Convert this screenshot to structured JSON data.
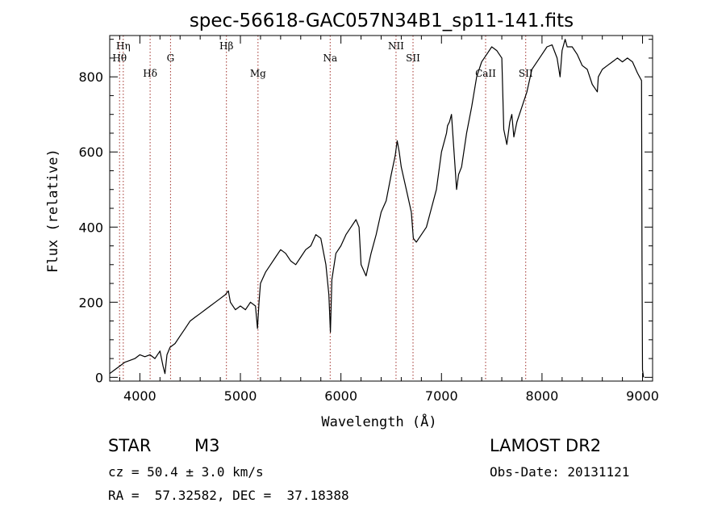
{
  "chart_data": {
    "type": "line",
    "title": "spec-56618-GAC057N34B1_sp11-141.fits",
    "xlabel": "Wavelength (Å)",
    "ylabel": "Flux (relative)",
    "xlim": [
      3700,
      9100
    ],
    "ylim": [
      -10,
      910
    ],
    "xticks": [
      4000,
      5000,
      6000,
      7000,
      8000,
      9000
    ],
    "yticks": [
      0,
      200,
      400,
      600,
      800
    ],
    "xtick_labels": [
      "4000",
      "5000",
      "6000",
      "7000",
      "8000",
      "9000"
    ],
    "ytick_labels": [
      "0",
      "200",
      "400",
      "600",
      "800"
    ],
    "grid": false,
    "spectral_lines": [
      {
        "label": "Hη",
        "wavelength": 3835,
        "row": 0
      },
      {
        "label": "Hθ",
        "wavelength": 3798,
        "row": 1
      },
      {
        "label": "Hδ",
        "wavelength": 4102,
        "row": 2
      },
      {
        "label": "G",
        "wavelength": 4305,
        "row": 1
      },
      {
        "label": "Hβ",
        "wavelength": 4861,
        "row": 0
      },
      {
        "label": "Mg",
        "wavelength": 5175,
        "row": 2
      },
      {
        "label": "Na",
        "wavelength": 5893,
        "row": 1
      },
      {
        "label": "NII",
        "wavelength": 6548,
        "row": 0
      },
      {
        "label": "SII",
        "wavelength": 6717,
        "row": 1
      },
      {
        "label": "CaII",
        "wavelength": 7439,
        "row": 2
      },
      {
        "label": "SII",
        "wavelength": 7838,
        "row": 2
      }
    ],
    "series": [
      {
        "x": [
          3700,
          3750,
          3800,
          3850,
          3900,
          3950,
          4000,
          4050,
          4100,
          4150,
          4200,
          4230,
          4250,
          4270,
          4300,
          4350,
          4400,
          4450,
          4500,
          4550,
          4600,
          4650,
          4700,
          4750,
          4800,
          4850,
          4880,
          4900,
          4950,
          5000,
          5050,
          5100,
          5150,
          5170,
          5185,
          5200,
          5250,
          5300,
          5350,
          5400,
          5450,
          5500,
          5550,
          5600,
          5650,
          5700,
          5750,
          5800,
          5850,
          5880,
          5895,
          5910,
          5950,
          6000,
          6050,
          6100,
          6150,
          6180,
          6200,
          6250,
          6300,
          6350,
          6400,
          6450,
          6500,
          6540,
          6560,
          6580,
          6600,
          6650,
          6700,
          6720,
          6750,
          6800,
          6850,
          6900,
          6950,
          7000,
          7050,
          7060,
          7080,
          7100,
          7130,
          7150,
          7170,
          7200,
          7250,
          7300,
          7350,
          7400,
          7450,
          7500,
          7550,
          7600,
          7620,
          7650,
          7680,
          7700,
          7720,
          7750,
          7800,
          7850,
          7900,
          7950,
          8000,
          8050,
          8100,
          8150,
          8180,
          8200,
          8230,
          8250,
          8300,
          8350,
          8400,
          8450,
          8500,
          8550,
          8560,
          8600,
          8650,
          8700,
          8750,
          8800,
          8850,
          8900,
          8950,
          8990,
          8995,
          9000,
          9010
        ],
        "y": [
          10,
          20,
          30,
          40,
          45,
          50,
          60,
          55,
          60,
          50,
          70,
          30,
          10,
          60,
          80,
          90,
          110,
          130,
          150,
          160,
          170,
          180,
          190,
          200,
          210,
          220,
          230,
          200,
          180,
          190,
          180,
          200,
          190,
          130,
          200,
          250,
          280,
          300,
          320,
          340,
          330,
          310,
          300,
          320,
          340,
          350,
          380,
          370,
          300,
          220,
          120,
          260,
          330,
          350,
          380,
          400,
          420,
          400,
          300,
          270,
          330,
          380,
          440,
          470,
          540,
          590,
          630,
          600,
          560,
          500,
          440,
          370,
          360,
          380,
          400,
          450,
          500,
          600,
          650,
          670,
          680,
          700,
          580,
          500,
          540,
          560,
          650,
          720,
          800,
          840,
          860,
          880,
          870,
          850,
          660,
          620,
          680,
          700,
          640,
          680,
          720,
          760,
          820,
          840,
          860,
          880,
          885,
          850,
          800,
          870,
          900,
          880,
          880,
          860,
          830,
          820,
          780,
          760,
          800,
          820,
          830,
          840,
          850,
          840,
          850,
          840,
          810,
          790,
          300,
          20,
          0
        ]
      }
    ]
  },
  "info": {
    "object_type": "STAR",
    "subclass": "M3",
    "release": "LAMOST DR2",
    "redshift": "cz = 50.4 ± 3.0 km/s",
    "obs_date": "Obs-Date: 20131121",
    "coords": "RA =  57.32582, DEC =  37.18388"
  }
}
